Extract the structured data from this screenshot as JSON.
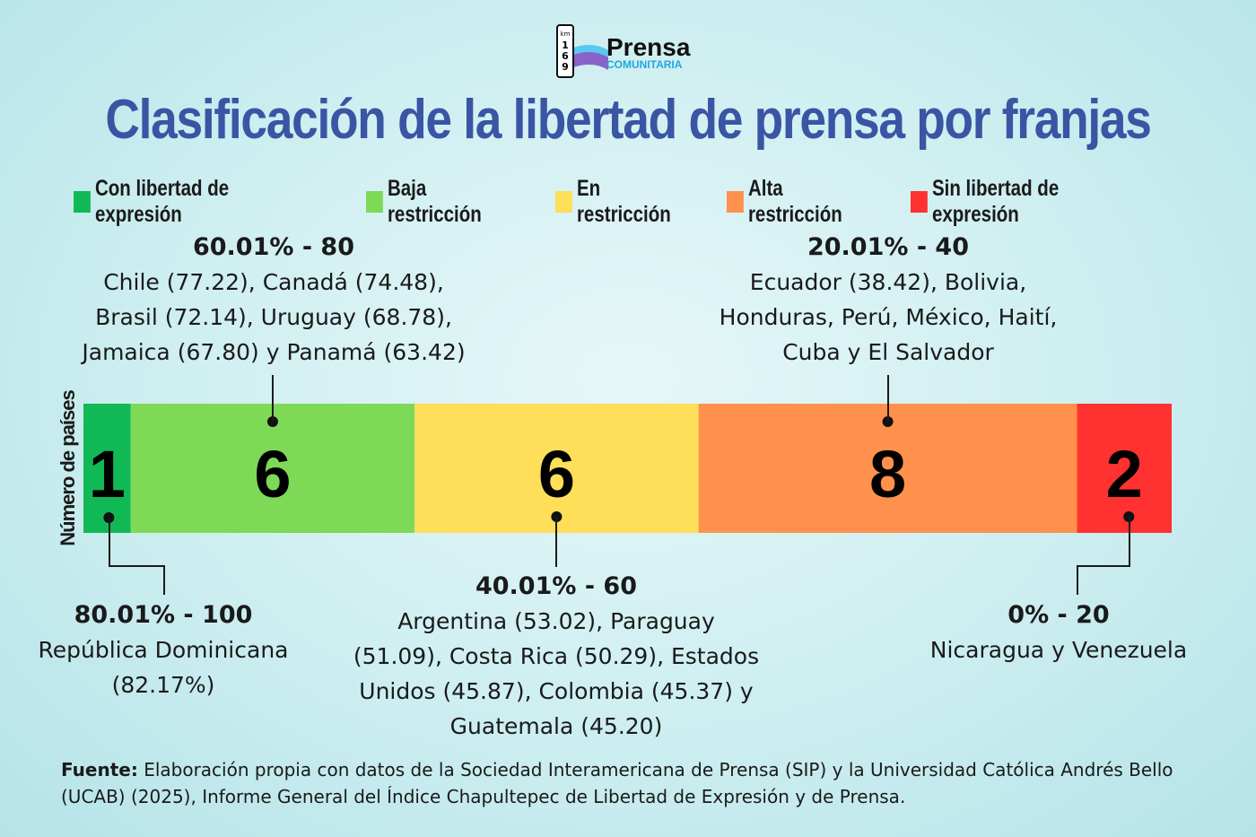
{
  "logo": {
    "sign_text": "km 169",
    "brand": "Prensa",
    "sub": "COMUNITARIA"
  },
  "title": "Clasificación de la libertad de prensa por franjas",
  "legend": [
    {
      "label": "Con libertad de expresión",
      "color": "#10b956"
    },
    {
      "label": "Baja restricción",
      "color": "#7ed957"
    },
    {
      "label": "En restricción",
      "color": "#ffde59"
    },
    {
      "label": "Alta restricción",
      "color": "#ff914d"
    },
    {
      "label": "Sin libertad de expresión",
      "color": "#ff3131"
    }
  ],
  "chart_data": {
    "type": "bar",
    "orientation": "stacked-horizontal",
    "ylabel": "Número de países",
    "categories": [
      "80.01% - 100",
      "60.01% - 80",
      "40.01% - 60",
      "20.01% - 40",
      "0% - 20"
    ],
    "values": [
      1,
      6,
      6,
      8,
      2
    ],
    "colors": [
      "#10b956",
      "#7ed957",
      "#ffde59",
      "#ff914d",
      "#ff3131"
    ],
    "annotations": [
      "República Dominicana (82.17%)",
      "Chile (77.22), Canadá (74.48), Brasil (72.14), Uruguay (68.78), Jamaica (67.80) y Panamá (63.42)",
      "Argentina (53.02), Paraguay (51.09), Costa Rica (50.29), Estados Unidos (45.87), Colombia (45.37) y Guatemala (45.20)",
      "Ecuador (38.42), Bolivia, Honduras, Perú, México, Haití, Cuba y El Salvador",
      "Nicaragua y Venezuela"
    ]
  },
  "source": {
    "label": "Fuente:",
    "text": " Elaboración propia con datos de la Sociedad Interamericana de Prensa (SIP) y la Universidad Católica Andrés Bello (UCAB) (2025), Informe General del Índice Chapultepec de Libertad de Expresión y de Prensa."
  }
}
